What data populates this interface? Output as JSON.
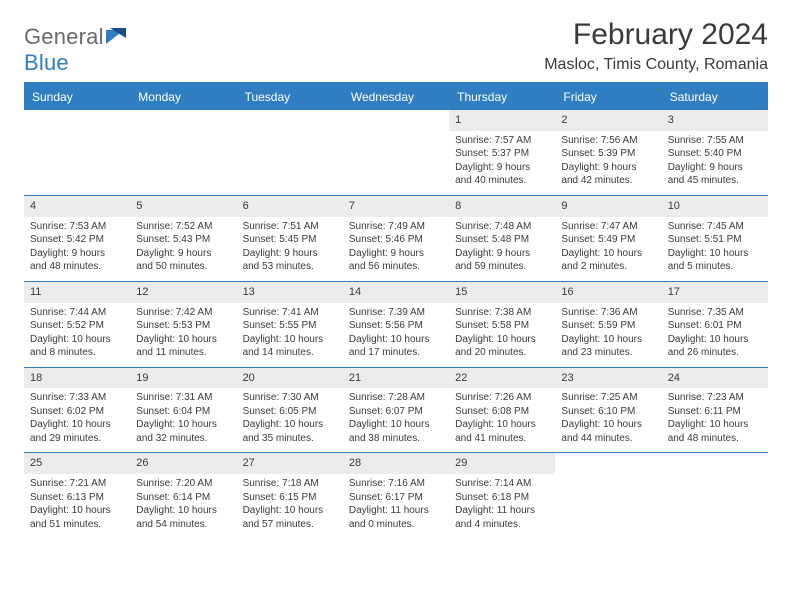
{
  "colors": {
    "accent": "#2f7ec1",
    "text": "#3a3a3a",
    "daynum_bg": "#ececec",
    "bg": "#ffffff"
  },
  "typography": {
    "month_fontsize": 30,
    "location_fontsize": 16,
    "header_fontsize": 12,
    "cell_fontsize": 10,
    "family": "Arial"
  },
  "logo": {
    "part1": "General",
    "part2": "Blue"
  },
  "title": "February 2024",
  "location": "Masloc, Timis County, Romania",
  "weekdays": [
    "Sunday",
    "Monday",
    "Tuesday",
    "Wednesday",
    "Thursday",
    "Friday",
    "Saturday"
  ],
  "cells": [
    {
      "n": "",
      "sr": "",
      "ss": "",
      "dl": ""
    },
    {
      "n": "",
      "sr": "",
      "ss": "",
      "dl": ""
    },
    {
      "n": "",
      "sr": "",
      "ss": "",
      "dl": ""
    },
    {
      "n": "",
      "sr": "",
      "ss": "",
      "dl": ""
    },
    {
      "n": "1",
      "sr": "Sunrise: 7:57 AM",
      "ss": "Sunset: 5:37 PM",
      "dl": "Daylight: 9 hours and 40 minutes."
    },
    {
      "n": "2",
      "sr": "Sunrise: 7:56 AM",
      "ss": "Sunset: 5:39 PM",
      "dl": "Daylight: 9 hours and 42 minutes."
    },
    {
      "n": "3",
      "sr": "Sunrise: 7:55 AM",
      "ss": "Sunset: 5:40 PM",
      "dl": "Daylight: 9 hours and 45 minutes."
    },
    {
      "n": "4",
      "sr": "Sunrise: 7:53 AM",
      "ss": "Sunset: 5:42 PM",
      "dl": "Daylight: 9 hours and 48 minutes."
    },
    {
      "n": "5",
      "sr": "Sunrise: 7:52 AM",
      "ss": "Sunset: 5:43 PM",
      "dl": "Daylight: 9 hours and 50 minutes."
    },
    {
      "n": "6",
      "sr": "Sunrise: 7:51 AM",
      "ss": "Sunset: 5:45 PM",
      "dl": "Daylight: 9 hours and 53 minutes."
    },
    {
      "n": "7",
      "sr": "Sunrise: 7:49 AM",
      "ss": "Sunset: 5:46 PM",
      "dl": "Daylight: 9 hours and 56 minutes."
    },
    {
      "n": "8",
      "sr": "Sunrise: 7:48 AM",
      "ss": "Sunset: 5:48 PM",
      "dl": "Daylight: 9 hours and 59 minutes."
    },
    {
      "n": "9",
      "sr": "Sunrise: 7:47 AM",
      "ss": "Sunset: 5:49 PM",
      "dl": "Daylight: 10 hours and 2 minutes."
    },
    {
      "n": "10",
      "sr": "Sunrise: 7:45 AM",
      "ss": "Sunset: 5:51 PM",
      "dl": "Daylight: 10 hours and 5 minutes."
    },
    {
      "n": "11",
      "sr": "Sunrise: 7:44 AM",
      "ss": "Sunset: 5:52 PM",
      "dl": "Daylight: 10 hours and 8 minutes."
    },
    {
      "n": "12",
      "sr": "Sunrise: 7:42 AM",
      "ss": "Sunset: 5:53 PM",
      "dl": "Daylight: 10 hours and 11 minutes."
    },
    {
      "n": "13",
      "sr": "Sunrise: 7:41 AM",
      "ss": "Sunset: 5:55 PM",
      "dl": "Daylight: 10 hours and 14 minutes."
    },
    {
      "n": "14",
      "sr": "Sunrise: 7:39 AM",
      "ss": "Sunset: 5:56 PM",
      "dl": "Daylight: 10 hours and 17 minutes."
    },
    {
      "n": "15",
      "sr": "Sunrise: 7:38 AM",
      "ss": "Sunset: 5:58 PM",
      "dl": "Daylight: 10 hours and 20 minutes."
    },
    {
      "n": "16",
      "sr": "Sunrise: 7:36 AM",
      "ss": "Sunset: 5:59 PM",
      "dl": "Daylight: 10 hours and 23 minutes."
    },
    {
      "n": "17",
      "sr": "Sunrise: 7:35 AM",
      "ss": "Sunset: 6:01 PM",
      "dl": "Daylight: 10 hours and 26 minutes."
    },
    {
      "n": "18",
      "sr": "Sunrise: 7:33 AM",
      "ss": "Sunset: 6:02 PM",
      "dl": "Daylight: 10 hours and 29 minutes."
    },
    {
      "n": "19",
      "sr": "Sunrise: 7:31 AM",
      "ss": "Sunset: 6:04 PM",
      "dl": "Daylight: 10 hours and 32 minutes."
    },
    {
      "n": "20",
      "sr": "Sunrise: 7:30 AM",
      "ss": "Sunset: 6:05 PM",
      "dl": "Daylight: 10 hours and 35 minutes."
    },
    {
      "n": "21",
      "sr": "Sunrise: 7:28 AM",
      "ss": "Sunset: 6:07 PM",
      "dl": "Daylight: 10 hours and 38 minutes."
    },
    {
      "n": "22",
      "sr": "Sunrise: 7:26 AM",
      "ss": "Sunset: 6:08 PM",
      "dl": "Daylight: 10 hours and 41 minutes."
    },
    {
      "n": "23",
      "sr": "Sunrise: 7:25 AM",
      "ss": "Sunset: 6:10 PM",
      "dl": "Daylight: 10 hours and 44 minutes."
    },
    {
      "n": "24",
      "sr": "Sunrise: 7:23 AM",
      "ss": "Sunset: 6:11 PM",
      "dl": "Daylight: 10 hours and 48 minutes."
    },
    {
      "n": "25",
      "sr": "Sunrise: 7:21 AM",
      "ss": "Sunset: 6:13 PM",
      "dl": "Daylight: 10 hours and 51 minutes."
    },
    {
      "n": "26",
      "sr": "Sunrise: 7:20 AM",
      "ss": "Sunset: 6:14 PM",
      "dl": "Daylight: 10 hours and 54 minutes."
    },
    {
      "n": "27",
      "sr": "Sunrise: 7:18 AM",
      "ss": "Sunset: 6:15 PM",
      "dl": "Daylight: 10 hours and 57 minutes."
    },
    {
      "n": "28",
      "sr": "Sunrise: 7:16 AM",
      "ss": "Sunset: 6:17 PM",
      "dl": "Daylight: 11 hours and 0 minutes."
    },
    {
      "n": "29",
      "sr": "Sunrise: 7:14 AM",
      "ss": "Sunset: 6:18 PM",
      "dl": "Daylight: 11 hours and 4 minutes."
    },
    {
      "n": "",
      "sr": "",
      "ss": "",
      "dl": ""
    },
    {
      "n": "",
      "sr": "",
      "ss": "",
      "dl": ""
    }
  ]
}
